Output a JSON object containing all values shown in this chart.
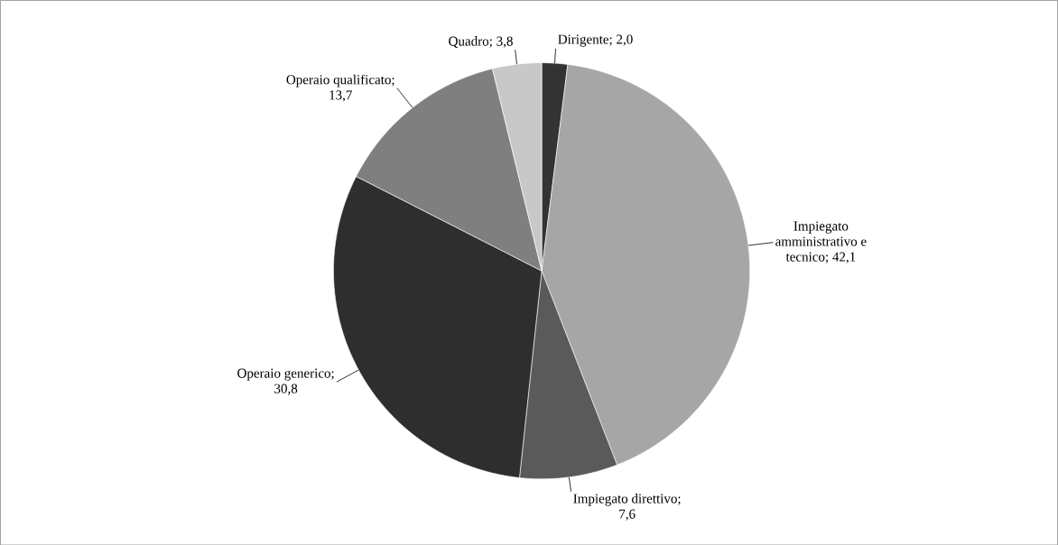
{
  "chart_data": {
    "type": "pie",
    "categories": [
      "Dirigente",
      "Impiegato amministrativo e tecnico",
      "Impiegato direttivo",
      "Operaio generico",
      "Operaio qualificato",
      "Quadro"
    ],
    "values": [
      2.0,
      42.1,
      7.6,
      30.8,
      13.7,
      3.8
    ],
    "value_labels": [
      "; 2,0",
      "; 42,1",
      "; 7,6",
      "; 30,8",
      "; 13,7",
      "; 3,8"
    ],
    "colors": [
      "#333333",
      "#a6a6a6",
      "#5a5a5a",
      "#2e2e2e",
      "#7f7f7f",
      "#c8c8c8"
    ]
  }
}
